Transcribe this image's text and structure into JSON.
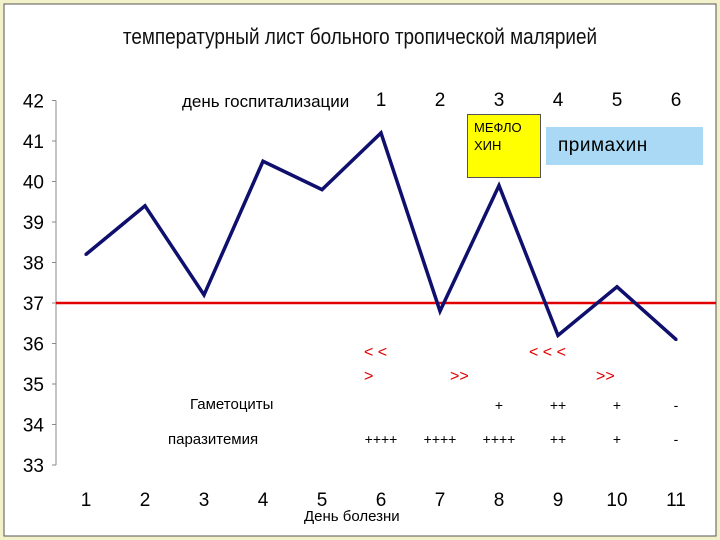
{
  "chart_data": {
    "type": "line",
    "title": "температурный лист больного тропической малярией",
    "xlabel": "День болезни",
    "x": [
      1,
      2,
      3,
      4,
      5,
      6,
      7,
      8,
      9,
      10,
      11
    ],
    "values": [
      38.2,
      39.4,
      37.2,
      40.5,
      39.8,
      41.2,
      36.8,
      39.9,
      36.2,
      37.4,
      36.1
    ],
    "ylim": [
      33,
      42
    ],
    "yticks": [
      33,
      34,
      35,
      36,
      37,
      38,
      39,
      40,
      41,
      42
    ],
    "reference_line": {
      "value": 37,
      "color": "#e00000"
    },
    "line_color": "#0f0f6e",
    "hospital_days": {
      "label": "день госпитализации",
      "days": [
        "1",
        "2",
        "3",
        "4",
        "5",
        "6"
      ]
    },
    "drugs": [
      {
        "name": "МЕФЛО ХИН",
        "line1": "МЕФЛО",
        "line2": "ХИН",
        "color": "#ffff00"
      },
      {
        "name": "примахин",
        "color": "#a9d9f4"
      }
    ],
    "gametocytes": {
      "label": "Гаметоциты",
      "marks": [
        {
          "day": 8,
          "text": "+"
        },
        {
          "day": 9,
          "text": "++"
        },
        {
          "day": 10,
          "text": "+"
        },
        {
          "day": 11,
          "text": "-"
        }
      ]
    },
    "parasitemia": {
      "label": "паразитемия",
      "marks": [
        {
          "day": 6,
          "text": "++++"
        },
        {
          "day": 7,
          "text": "++++"
        },
        {
          "day": 8,
          "text": "++++"
        },
        {
          "day": 9,
          "text": "++"
        },
        {
          "day": 10,
          "text": "+"
        },
        {
          "day": 11,
          "text": "-"
        }
      ]
    },
    "trend_annotations": [
      {
        "line1": "< <",
        "line2": ">"
      },
      {
        "line1": ">>"
      },
      {
        "line1": "< < <"
      },
      {
        "line1": ">>"
      }
    ]
  }
}
